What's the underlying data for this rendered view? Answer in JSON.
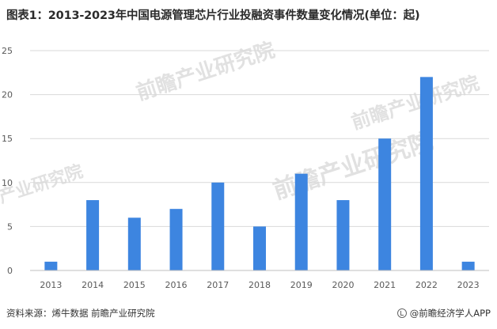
{
  "title": "图表1：2013-2023年中国电源管理芯片行业投融资事件数量变化情况(单位：起)",
  "watermarks": [
    "前瞻产业研究院",
    "前瞻产业研究院",
    "前瞻产业研究院",
    "产业研究院"
  ],
  "footer": {
    "source": "资料来源：烯牛数据 前瞻产业研究院",
    "brand": "@前瞻经济学人APP"
  },
  "colors": {
    "bar": "#3d85e0",
    "grid": "#d9d9d9",
    "axis": "#bfbfbf"
  },
  "chart_data": {
    "type": "bar",
    "categories": [
      "2013",
      "2014",
      "2015",
      "2016",
      "2017",
      "2018",
      "2019",
      "2020",
      "2021",
      "2022",
      "2023"
    ],
    "values": [
      1,
      8,
      6,
      7,
      10,
      5,
      11,
      8,
      15,
      22,
      1
    ],
    "title": "图表1：2013-2023年中国电源管理芯片行业投融资事件数量变化情况(单位：起)",
    "xlabel": "",
    "ylabel": "",
    "ylim": [
      0,
      25
    ],
    "yticks": [
      0,
      5,
      10,
      15,
      20,
      25
    ],
    "grid": true,
    "legend": "none"
  }
}
